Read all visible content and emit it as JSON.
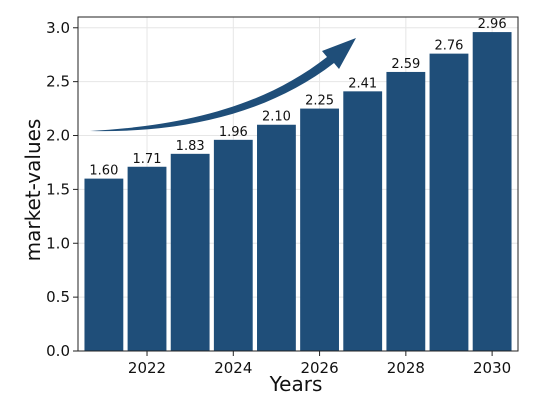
{
  "chart_data": {
    "type": "bar",
    "categories": [
      "2021",
      "2022",
      "2023",
      "2024",
      "2025",
      "2026",
      "2027",
      "2028",
      "2029",
      "2030"
    ],
    "x": [
      2021,
      2022,
      2023,
      2024,
      2025,
      2026,
      2027,
      2028,
      2029,
      2030
    ],
    "values": [
      1.6,
      1.71,
      1.83,
      1.96,
      2.1,
      2.25,
      2.41,
      2.59,
      2.76,
      2.96
    ],
    "data_labels": [
      "1.60",
      "1.71",
      "1.83",
      "1.96",
      "2.10",
      "2.25",
      "2.41",
      "2.59",
      "2.76",
      "2.96"
    ],
    "title": "",
    "xlabel": "Years",
    "ylabel": "market-values",
    "xticks": [
      2022,
      2024,
      2026,
      2028,
      2030
    ],
    "xtick_labels": [
      "2022",
      "2024",
      "2026",
      "2028",
      "2030"
    ],
    "yticks": [
      0.0,
      0.5,
      1.0,
      1.5,
      2.0,
      2.5,
      3.0
    ],
    "ytick_labels": [
      "0.0",
      "0.5",
      "1.0",
      "1.5",
      "2.0",
      "2.5",
      "3.0"
    ],
    "xlim": [
      2020.4,
      2030.6
    ],
    "ylim": [
      0,
      3.1
    ],
    "grid": true,
    "legend": "none",
    "bar_color": "#1f4e79",
    "annotation": "upward-trend-arrow"
  }
}
